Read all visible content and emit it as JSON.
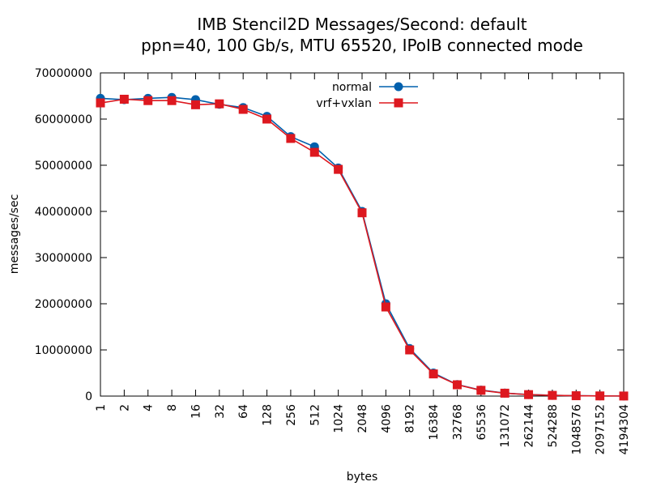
{
  "chart_data": {
    "type": "line",
    "title": "IMB Stencil2D Messages/Second: default",
    "subtitle": "ppn=40, 100 Gb/s, MTU 65520, IPoIB connected mode",
    "xlabel": "bytes",
    "ylabel": "messages/sec",
    "categories": [
      "1",
      "2",
      "4",
      "8",
      "16",
      "32",
      "64",
      "128",
      "256",
      "512",
      "1024",
      "2048",
      "4096",
      "8192",
      "16384",
      "32768",
      "65536",
      "131072",
      "262144",
      "524288",
      "1048576",
      "2097152",
      "4194304"
    ],
    "yticks": [
      "0",
      "10000000",
      "20000000",
      "30000000",
      "40000000",
      "50000000",
      "60000000",
      "70000000"
    ],
    "ylim": [
      0,
      70000000
    ],
    "grid": false,
    "legend_position": "top-center",
    "series": [
      {
        "name": "normal",
        "color": "#0060ad",
        "marker": "circle",
        "values": [
          64500000,
          64200000,
          64500000,
          64700000,
          64200000,
          63200000,
          62500000,
          60600000,
          56200000,
          54000000,
          49400000,
          40000000,
          20000000,
          10300000,
          5000000,
          2500000,
          1300000,
          650000,
          330000,
          160000,
          80000,
          40000,
          20000
        ]
      },
      {
        "name": "vrf+vxlan",
        "color": "#dd181f",
        "marker": "square",
        "values": [
          63500000,
          64300000,
          64000000,
          64000000,
          63100000,
          63300000,
          62100000,
          60000000,
          55800000,
          52800000,
          49100000,
          39700000,
          19300000,
          10000000,
          4800000,
          2450000,
          1250000,
          630000,
          320000,
          155000,
          78000,
          39000,
          19000
        ]
      }
    ]
  }
}
